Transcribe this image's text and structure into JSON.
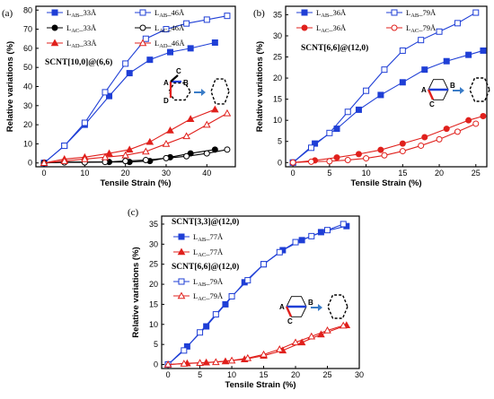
{
  "colors": {
    "blue": "#1f3fd6",
    "red": "#e0201c",
    "black": "#000000"
  },
  "chart_data": [
    {
      "panel": "(a)",
      "type": "line",
      "annotation": "SCNT[10,0]@(6,6)",
      "xlabel": "Tensile Strain (%)",
      "ylabel": "Relative variations (%)",
      "xlim": [
        -2,
        47
      ],
      "ylim": [
        -2,
        82
      ],
      "xticks": [
        0,
        10,
        20,
        30,
        40
      ],
      "yticks": [
        0,
        10,
        20,
        30,
        40,
        50,
        60,
        70,
        80
      ],
      "inset_labels": [
        "A",
        "B",
        "C",
        "D"
      ],
      "series": [
        {
          "name": "LAB_33Å",
          "color": "blue",
          "marker": "square",
          "filled": true,
          "x": [
            0,
            5,
            10,
            16,
            21,
            26,
            31,
            36,
            42
          ],
          "y": [
            0,
            9,
            20,
            35,
            47,
            54,
            58,
            60,
            63
          ]
        },
        {
          "name": "LAB_46Å",
          "color": "blue",
          "marker": "square",
          "filled": false,
          "x": [
            0,
            5,
            10,
            15,
            20,
            25,
            30,
            35,
            40,
            45
          ],
          "y": [
            0,
            9,
            21,
            37,
            52,
            65,
            70,
            73,
            75,
            77
          ]
        },
        {
          "name": "LAC_33Å",
          "color": "black",
          "marker": "circle",
          "filled": true,
          "x": [
            0,
            5,
            10,
            16,
            21,
            26,
            31,
            36,
            42
          ],
          "y": [
            0,
            0.5,
            0.5,
            0.5,
            0.5,
            1,
            3,
            5,
            7
          ]
        },
        {
          "name": "LAC_46Å",
          "color": "black",
          "marker": "circle",
          "filled": false,
          "x": [
            0,
            5,
            10,
            15,
            20,
            25,
            30,
            35,
            40,
            45
          ],
          "y": [
            0,
            0.3,
            0.3,
            0.5,
            1,
            1.5,
            2.5,
            3.5,
            5,
            7
          ]
        },
        {
          "name": "LAD_33Å",
          "color": "red",
          "marker": "triangle",
          "filled": true,
          "x": [
            0,
            5,
            10,
            16,
            21,
            26,
            31,
            36,
            42
          ],
          "y": [
            0,
            2,
            3,
            5,
            7,
            11,
            17,
            23,
            28
          ]
        },
        {
          "name": "LAD_46Å",
          "color": "red",
          "marker": "triangle",
          "filled": false,
          "x": [
            0,
            5,
            10,
            15,
            20,
            25,
            30,
            35,
            40,
            45
          ],
          "y": [
            0,
            1,
            2,
            3,
            4,
            6,
            10,
            14,
            20,
            26
          ]
        }
      ]
    },
    {
      "panel": "(b)",
      "type": "line",
      "annotation": "SCNT[6,6]@(12,0)",
      "xlabel": "Tensile Strain (%)",
      "ylabel": "Relative variations (%)",
      "xlim": [
        -1,
        26.5
      ],
      "ylim": [
        -1,
        37
      ],
      "xticks": [
        0,
        5,
        10,
        15,
        20,
        25
      ],
      "yticks": [
        0,
        5,
        10,
        15,
        20,
        25,
        30,
        35
      ],
      "inset_labels": [
        "A",
        "B",
        "C"
      ],
      "series": [
        {
          "name": "LAB_36Å",
          "color": "blue",
          "marker": "square",
          "filled": true,
          "x": [
            0,
            3,
            6,
            9,
            12,
            15,
            18,
            21,
            24,
            26
          ],
          "y": [
            0,
            4.5,
            8,
            12.5,
            16,
            19,
            22,
            24,
            25.5,
            26.5
          ]
        },
        {
          "name": "LAB_79Å",
          "color": "blue",
          "marker": "square",
          "filled": false,
          "x": [
            0,
            2.5,
            5,
            7.5,
            10,
            12.5,
            15,
            17.5,
            20,
            22.5,
            25
          ],
          "y": [
            0,
            3.5,
            7,
            12,
            17,
            22,
            26.5,
            29,
            31,
            33,
            35.5
          ]
        },
        {
          "name": "LAC_36Å",
          "color": "red",
          "marker": "circle",
          "filled": true,
          "x": [
            0,
            3,
            6,
            9,
            12,
            15,
            18,
            21,
            24,
            26
          ],
          "y": [
            0,
            0.5,
            1.2,
            2,
            3,
            4.5,
            6,
            8,
            10,
            11
          ]
        },
        {
          "name": "LAC_79Å",
          "color": "red",
          "marker": "circle",
          "filled": false,
          "x": [
            0,
            2.5,
            5,
            7.5,
            10,
            12.5,
            15,
            17.5,
            20,
            22.5,
            25
          ],
          "y": [
            0,
            0.2,
            0.3,
            0.6,
            1,
            1.7,
            2.7,
            4,
            5.5,
            7.3,
            9.2
          ]
        }
      ]
    },
    {
      "panel": "(c)",
      "type": "line",
      "annotations": [
        "SCNT[3,3]@(12,0)",
        "SCNT[6,6]@(12,0)"
      ],
      "xlabel": "Tensile Strain (%)",
      "ylabel": "Relative variations (%)",
      "xlim": [
        -1,
        30
      ],
      "ylim": [
        -1,
        37
      ],
      "xticks": [
        0,
        5,
        10,
        15,
        20,
        25,
        30
      ],
      "yticks": [
        0,
        5,
        10,
        15,
        20,
        25,
        30,
        35
      ],
      "inset_labels": [
        "A",
        "B",
        "C"
      ],
      "series": [
        {
          "name": "LAB_77Å",
          "color": "blue",
          "marker": "square",
          "filled": true,
          "group": 0,
          "x": [
            0,
            3,
            6,
            9,
            12,
            15,
            18,
            21,
            24,
            28
          ],
          "y": [
            0,
            4.5,
            9.5,
            15,
            20.5,
            25,
            28.5,
            31,
            33,
            34.5
          ]
        },
        {
          "name": "LAC_77Å",
          "color": "red",
          "marker": "triangle",
          "filled": true,
          "group": 0,
          "x": [
            0,
            3,
            6,
            9,
            12,
            15,
            18,
            21,
            24,
            28
          ],
          "y": [
            0,
            0.3,
            0.5,
            0.8,
            1.3,
            2.2,
            3.5,
            5.5,
            7.5,
            9.8
          ]
        },
        {
          "name": "LAB_79Å",
          "color": "blue",
          "marker": "square",
          "filled": false,
          "group": 1,
          "x": [
            0,
            2.5,
            5,
            7.5,
            10,
            12.5,
            15,
            17.5,
            20,
            22.5,
            25,
            27.5
          ],
          "y": [
            0,
            3.5,
            8,
            12.5,
            17,
            21,
            25,
            28,
            30.5,
            32,
            33.5,
            35
          ]
        },
        {
          "name": "LAC_79Å",
          "color": "red",
          "marker": "triangle",
          "filled": false,
          "group": 1,
          "x": [
            0,
            2.5,
            5,
            7.5,
            10,
            12.5,
            15,
            17.5,
            20,
            22.5,
            25,
            27.5
          ],
          "y": [
            0,
            0.2,
            0.4,
            0.6,
            1,
            1.6,
            2.5,
            3.8,
            5.5,
            7,
            8.5,
            9.7
          ]
        }
      ]
    }
  ]
}
